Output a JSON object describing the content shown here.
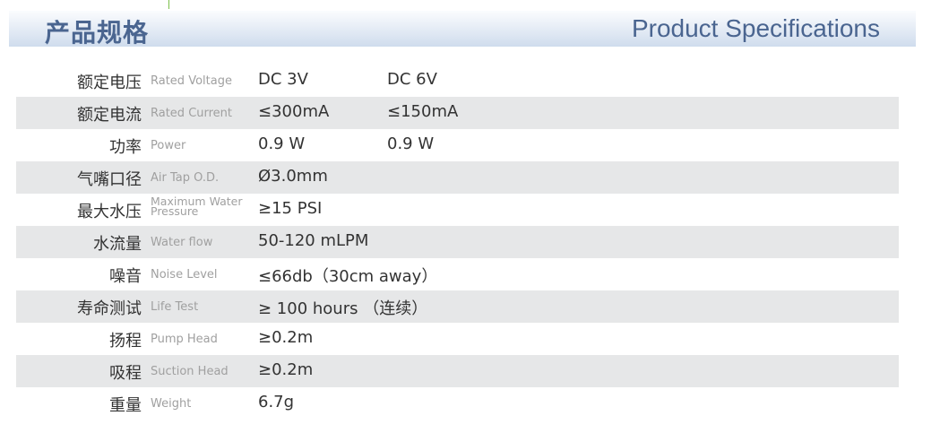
{
  "header": {
    "title_cn": "产品规格",
    "title_en": "Product Specifications"
  },
  "specs": [
    {
      "cn": "额定电压",
      "en": "Rated Voltage",
      "v1": "DC 3V",
      "v2": "DC 6V"
    },
    {
      "cn": "额定电流",
      "en": "Rated Current",
      "v1": "≤300mA",
      "v2": "≤150mA"
    },
    {
      "cn": "功率",
      "en": "Power",
      "v1": "0.9 W",
      "v2": "0.9 W"
    },
    {
      "cn": "气嘴口径",
      "en": "Air Tap O.D.",
      "v1": "Ø3.0mm",
      "v2": ""
    },
    {
      "cn": "最大水压",
      "en": "Maximum Water Pressure",
      "v1": "≥15 PSI",
      "v2": ""
    },
    {
      "cn": "水流量",
      "en": "Water flow",
      "v1": "50-120 mLPM",
      "v2": ""
    },
    {
      "cn": "噪音",
      "en": "Noise Level",
      "v1": "≤66db（30cm away）",
      "v2": ""
    },
    {
      "cn": "寿命测试",
      "en": "Life Test",
      "v1": "≥ 100 hours （连续）",
      "v2": ""
    },
    {
      "cn": "扬程",
      "en": "Pump Head",
      "v1": "≥0.2m",
      "v2": ""
    },
    {
      "cn": "吸程",
      "en": "Suction Head",
      "v1": "≥0.2m",
      "v2": ""
    },
    {
      "cn": "重量",
      "en": "Weight",
      "v1": "6.7g",
      "v2": ""
    }
  ],
  "colors": {
    "title": "#4a6590",
    "stripe": "#e6e7e8"
  }
}
